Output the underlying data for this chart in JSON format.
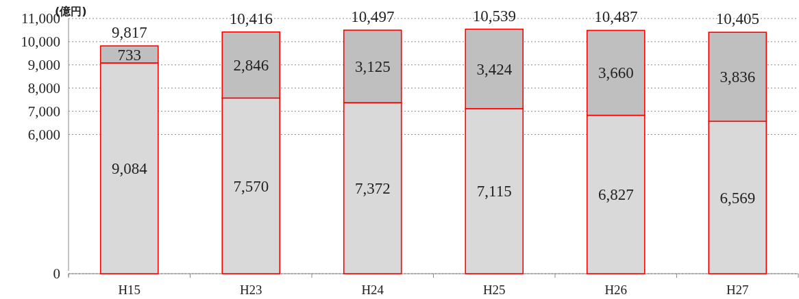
{
  "chart_data": {
    "type": "bar",
    "stacked": true,
    "ylabel": "(億円)",
    "categories": [
      "H15",
      "H23",
      "H24",
      "H25",
      "H26",
      "H27"
    ],
    "series": [
      {
        "color": "#d9d9d9",
        "values": [
          9084,
          7570,
          7372,
          7115,
          6827,
          6569
        ],
        "value_labels": [
          "9,084",
          "7,570",
          "7,372",
          "7,115",
          "6,827",
          "6,569"
        ]
      },
      {
        "color": "#bfbfbf",
        "values": [
          733,
          2846,
          3125,
          3424,
          3660,
          3836
        ],
        "value_labels": [
          "733",
          "2,846",
          "3,125",
          "3,424",
          "3,660",
          "3,836"
        ]
      }
    ],
    "totals": [
      "9,817",
      "10,416",
      "10,497",
      "10,539",
      "10,487",
      "10,405"
    ],
    "ylim": [
      0,
      11000
    ],
    "yticks": [
      0,
      {
        "value": 6000,
        "label": "6,000"
      },
      {
        "value": 7000,
        "label": "7,000"
      },
      {
        "value": 8000,
        "label": "8,000"
      },
      {
        "value": 9000,
        "label": "9,000"
      },
      {
        "value": 10000,
        "label": "10,000"
      },
      {
        "value": 11000,
        "label": "11,000"
      }
    ],
    "grid": "y"
  }
}
